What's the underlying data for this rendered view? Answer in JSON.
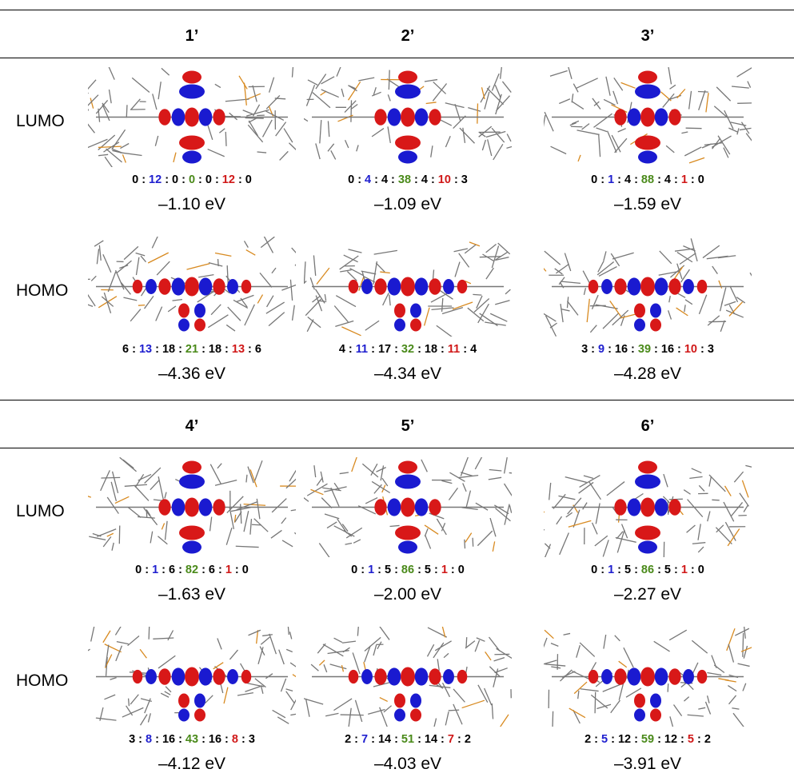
{
  "separator": ":",
  "blocks": [
    {
      "columns": [
        "1’",
        "2’",
        "3’"
      ],
      "rows": [
        {
          "label": "LUMO",
          "cells": [
            {
              "ratio": [
                0,
                12,
                0,
                0,
                0,
                12,
                0
              ],
              "energy": "–1.10 eV"
            },
            {
              "ratio": [
                0,
                4,
                4,
                38,
                4,
                10,
                3
              ],
              "energy": "–1.09 eV"
            },
            {
              "ratio": [
                0,
                1,
                4,
                88,
                4,
                1,
                0
              ],
              "energy": "–1.59 eV"
            }
          ]
        },
        {
          "label": "HOMO",
          "cells": [
            {
              "ratio": [
                6,
                13,
                18,
                21,
                18,
                13,
                6
              ],
              "energy": "–4.36 eV"
            },
            {
              "ratio": [
                4,
                11,
                17,
                32,
                18,
                11,
                4
              ],
              "energy": "–4.34 eV"
            },
            {
              "ratio": [
                3,
                9,
                16,
                39,
                16,
                10,
                3
              ],
              "energy": "–4.28 eV"
            }
          ]
        }
      ]
    },
    {
      "columns": [
        "4’",
        "5’",
        "6’"
      ],
      "rows": [
        {
          "label": "LUMO",
          "cells": [
            {
              "ratio": [
                0,
                1,
                6,
                82,
                6,
                1,
                0
              ],
              "energy": "–1.63 eV"
            },
            {
              "ratio": [
                0,
                1,
                5,
                86,
                5,
                1,
                0
              ],
              "energy": "–2.00 eV"
            },
            {
              "ratio": [
                0,
                1,
                5,
                86,
                5,
                1,
                0
              ],
              "energy": "–2.27 eV"
            }
          ]
        },
        {
          "label": "HOMO",
          "cells": [
            {
              "ratio": [
                3,
                8,
                16,
                43,
                16,
                8,
                3
              ],
              "energy": "–4.12 eV"
            },
            {
              "ratio": [
                2,
                7,
                14,
                51,
                14,
                7,
                2
              ],
              "energy": "–4.03 eV"
            },
            {
              "ratio": [
                2,
                5,
                12,
                59,
                12,
                5,
                2
              ],
              "energy": "–3.91 eV"
            }
          ]
        }
      ]
    }
  ]
}
